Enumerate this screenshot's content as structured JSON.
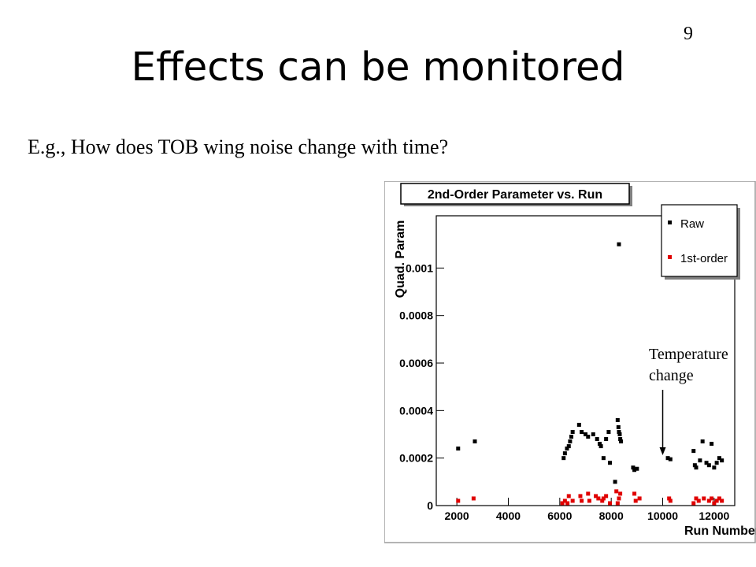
{
  "slide": {
    "number": "9",
    "title": "Effects can be monitored",
    "subtitle": "E.g., How does TOB wing noise change with time?"
  },
  "annotation": {
    "line1": "Temperature",
    "line2": "change",
    "arrow_target_x": 10000
  },
  "chart_data": {
    "type": "scatter",
    "title": "2nd-Order Parameter vs. Run",
    "xlabel": "Run Number",
    "ylabel": "Quad. Param",
    "xlim": [
      1200,
      12800
    ],
    "ylim": [
      0,
      0.00122
    ],
    "xticks": [
      2000,
      4000,
      6000,
      8000,
      10000,
      12000
    ],
    "xtick_labels": [
      "2000",
      "4000",
      "6000",
      "8000",
      "10000",
      "12000"
    ],
    "yticks": [
      0,
      0.0002,
      0.0004,
      0.0006,
      0.0008,
      0.001
    ],
    "ytick_labels": [
      "0",
      "0.0002",
      "0.0004",
      "0.0006",
      "0.0008",
      "0.001"
    ],
    "grid": false,
    "legend_position": "top-right",
    "series": [
      {
        "name": "Raw",
        "color": "#000000",
        "points": [
          [
            2050,
            0.00024
          ],
          [
            2700,
            0.00027
          ],
          [
            6150,
            0.0002
          ],
          [
            6200,
            0.00022
          ],
          [
            6280,
            0.00024
          ],
          [
            6350,
            0.00025
          ],
          [
            6400,
            0.00027
          ],
          [
            6450,
            0.00029
          ],
          [
            6500,
            0.00031
          ],
          [
            6750,
            0.00034
          ],
          [
            6850,
            0.00031
          ],
          [
            7000,
            0.0003
          ],
          [
            7100,
            0.00029
          ],
          [
            7300,
            0.0003
          ],
          [
            7450,
            0.00028
          ],
          [
            7550,
            0.00026
          ],
          [
            7600,
            0.00025
          ],
          [
            7700,
            0.0002
          ],
          [
            7800,
            0.00028
          ],
          [
            7900,
            0.00031
          ],
          [
            7950,
            0.00018
          ],
          [
            8150,
            0.0001
          ],
          [
            8250,
            0.00036
          ],
          [
            8280,
            0.00033
          ],
          [
            8300,
            0.00031
          ],
          [
            8330,
            0.0003
          ],
          [
            8350,
            0.00028
          ],
          [
            8380,
            0.00027
          ],
          [
            8300,
            0.0011
          ],
          [
            8850,
            0.00016
          ],
          [
            8900,
            0.00015
          ],
          [
            9000,
            0.000155
          ],
          [
            10200,
            0.0002
          ],
          [
            10300,
            0.000195
          ],
          [
            11200,
            0.00023
          ],
          [
            11250,
            0.00017
          ],
          [
            11300,
            0.00016
          ],
          [
            11450,
            0.00019
          ],
          [
            11550,
            0.00027
          ],
          [
            11700,
            0.00018
          ],
          [
            11800,
            0.00017
          ],
          [
            11900,
            0.00026
          ],
          [
            12000,
            0.00016
          ],
          [
            12100,
            0.00018
          ],
          [
            12200,
            0.0002
          ],
          [
            12300,
            0.00019
          ]
        ]
      },
      {
        "name": "1st-order",
        "color": "#e00000",
        "points": [
          [
            2050,
            2e-05
          ],
          [
            2650,
            3e-05
          ],
          [
            6100,
            1e-05
          ],
          [
            6200,
            2e-05
          ],
          [
            6300,
            1e-05
          ],
          [
            6350,
            4e-05
          ],
          [
            6500,
            2e-05
          ],
          [
            6800,
            4e-05
          ],
          [
            6850,
            2e-05
          ],
          [
            7100,
            5e-05
          ],
          [
            7150,
            2e-05
          ],
          [
            7400,
            4e-05
          ],
          [
            7500,
            3e-05
          ],
          [
            7650,
            2e-05
          ],
          [
            7700,
            3e-05
          ],
          [
            7800,
            4e-05
          ],
          [
            7950,
            1e-05
          ],
          [
            8200,
            6e-05
          ],
          [
            8250,
            1e-05
          ],
          [
            8300,
            3e-05
          ],
          [
            8350,
            5e-05
          ],
          [
            8900,
            5e-05
          ],
          [
            8950,
            2e-05
          ],
          [
            9100,
            3e-05
          ],
          [
            10250,
            3e-05
          ],
          [
            10300,
            2e-05
          ],
          [
            11200,
            1e-05
          ],
          [
            11300,
            3e-05
          ],
          [
            11400,
            2e-05
          ],
          [
            11600,
            3e-05
          ],
          [
            11800,
            2e-05
          ],
          [
            11900,
            3e-05
          ],
          [
            12000,
            1e-05
          ],
          [
            12100,
            2e-05
          ],
          [
            12200,
            3e-05
          ],
          [
            12300,
            2e-05
          ]
        ]
      }
    ]
  }
}
